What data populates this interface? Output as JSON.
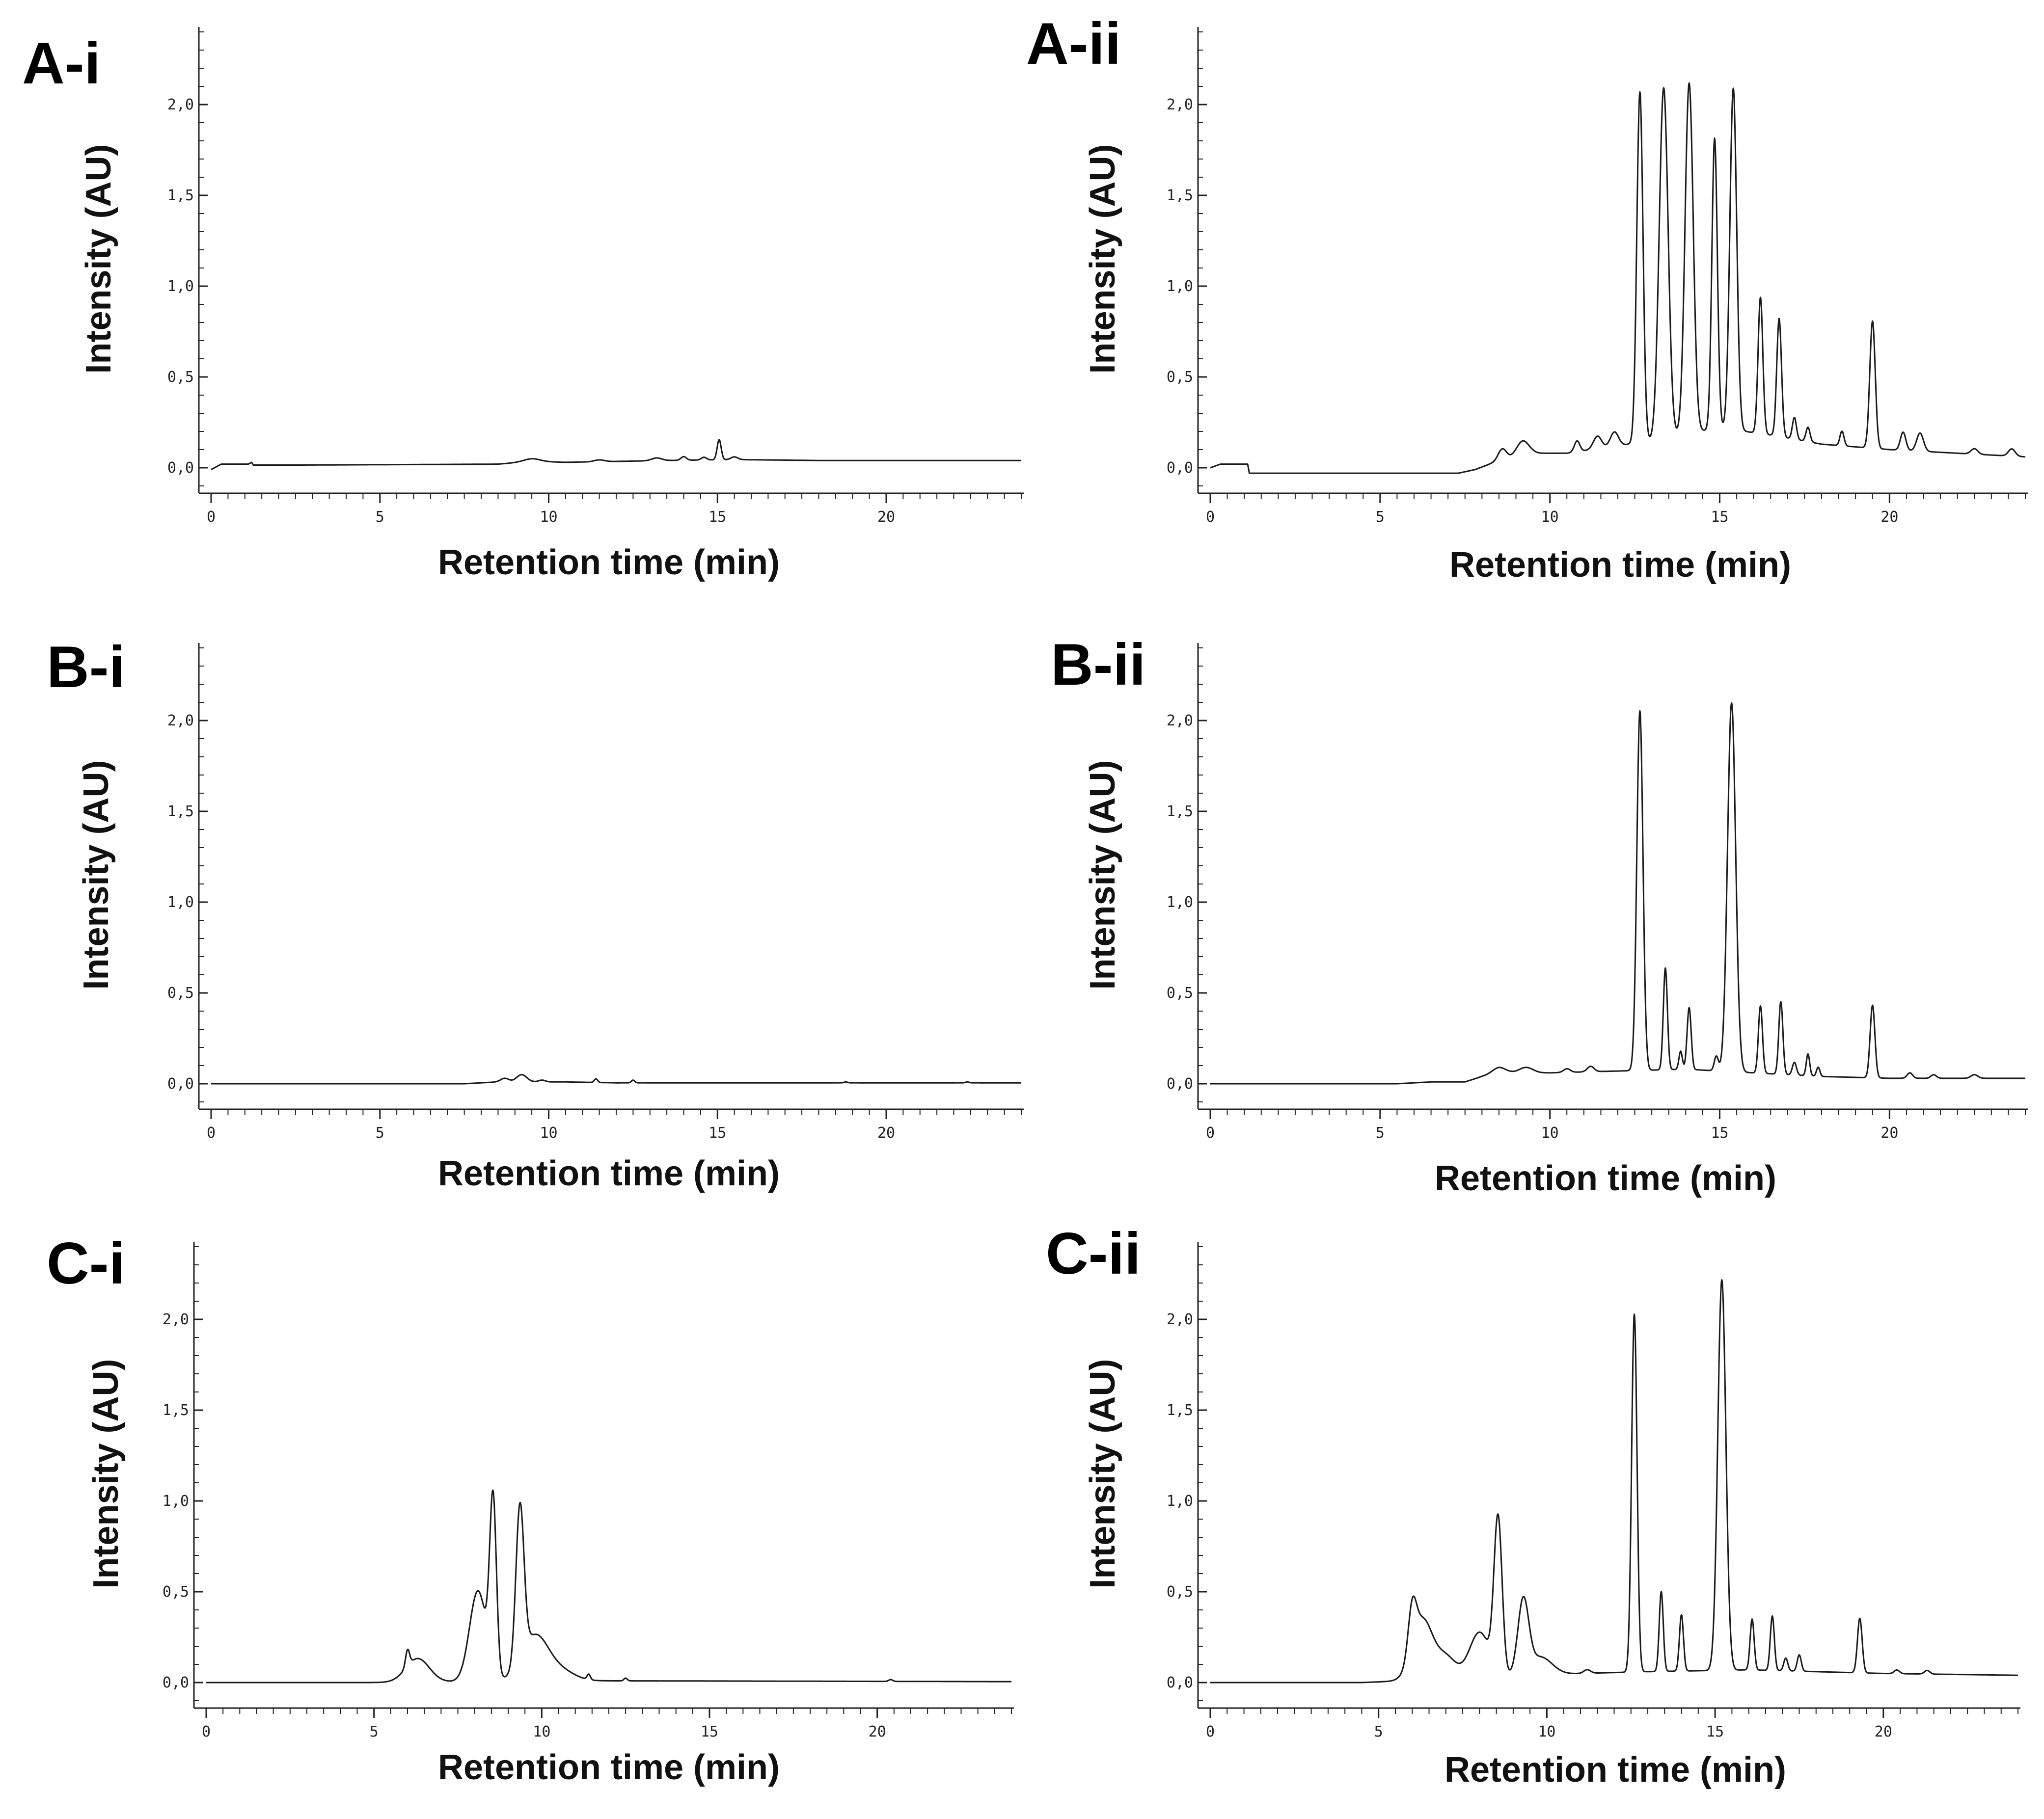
{
  "colors": {
    "trace": "#1a1a1a",
    "axis": "#222222",
    "background": "#ffffff"
  },
  "chart_data": [
    {
      "panel": "A-i",
      "type": "line",
      "xlabel": "Retention time (min)",
      "ylabel": "Intensity (AU)",
      "xlim": [
        0,
        24
      ],
      "ylim": [
        -0.1,
        2.4
      ],
      "xticks": [
        "0",
        "5",
        "10",
        "15",
        "20"
      ],
      "yticks": [
        "0,0",
        "0,5",
        "1,0",
        "1,5",
        "2,0"
      ],
      "baseline": [
        [
          0,
          -0.01
        ],
        [
          0.3,
          0.02
        ],
        [
          1.1,
          0.02
        ],
        [
          1.2,
          0.03
        ],
        [
          1.25,
          0.015
        ],
        [
          2.8,
          0.015
        ],
        [
          8.5,
          0.02
        ],
        [
          9.5,
          0.035
        ],
        [
          10.5,
          0.03
        ],
        [
          12,
          0.035
        ],
        [
          13.5,
          0.04
        ],
        [
          15.5,
          0.045
        ],
        [
          18,
          0.04
        ],
        [
          24,
          0.04
        ]
      ],
      "peaks": [
        [
          9.5,
          0.015,
          0.25
        ],
        [
          11.5,
          0.01,
          0.15
        ],
        [
          13.2,
          0.015,
          0.15
        ],
        [
          14.0,
          0.02,
          0.08
        ],
        [
          14.6,
          0.015,
          0.08
        ],
        [
          15.05,
          0.11,
          0.06
        ],
        [
          15.5,
          0.015,
          0.1
        ]
      ]
    },
    {
      "panel": "A-ii",
      "type": "line",
      "xlabel": "Retention time (min)",
      "ylabel": "Intensity (AU)",
      "xlim": [
        0,
        24
      ],
      "ylim": [
        -0.1,
        2.4
      ],
      "xticks": [
        "0",
        "5",
        "10",
        "15",
        "20"
      ],
      "yticks": [
        "0,0",
        "0,5",
        "1,0",
        "1,5",
        "2,0"
      ],
      "baseline": [
        [
          0,
          0.0
        ],
        [
          0.3,
          0.02
        ],
        [
          1.1,
          0.02
        ],
        [
          1.15,
          -0.03
        ],
        [
          7.3,
          -0.03
        ],
        [
          7.8,
          -0.01
        ],
        [
          8.5,
          0.04
        ],
        [
          9.5,
          0.08
        ],
        [
          10.5,
          0.08
        ],
        [
          12,
          0.12
        ],
        [
          13,
          0.15
        ],
        [
          15,
          0.22
        ],
        [
          16.5,
          0.18
        ],
        [
          18,
          0.13
        ],
        [
          20,
          0.1
        ],
        [
          22,
          0.08
        ],
        [
          24,
          0.06
        ]
      ],
      "peaks": [
        [
          8.6,
          0.06,
          0.12
        ],
        [
          9.2,
          0.08,
          0.18
        ],
        [
          10.8,
          0.06,
          0.08
        ],
        [
          11.4,
          0.07,
          0.12
        ],
        [
          11.9,
          0.08,
          0.12
        ],
        [
          12.65,
          1.93,
          0.09
        ],
        [
          13.35,
          1.93,
          0.13
        ],
        [
          14.1,
          1.93,
          0.12
        ],
        [
          14.85,
          1.6,
          0.08
        ],
        [
          15.4,
          1.88,
          0.1
        ],
        [
          16.2,
          0.75,
          0.07
        ],
        [
          16.75,
          0.65,
          0.07
        ],
        [
          17.2,
          0.12,
          0.06
        ],
        [
          17.6,
          0.08,
          0.06
        ],
        [
          18.6,
          0.08,
          0.06
        ],
        [
          19.5,
          0.7,
          0.08
        ],
        [
          20.4,
          0.1,
          0.08
        ],
        [
          20.9,
          0.1,
          0.1
        ],
        [
          22.5,
          0.03,
          0.1
        ],
        [
          23.6,
          0.04,
          0.1
        ]
      ]
    },
    {
      "panel": "B-i",
      "type": "line",
      "xlabel": "Retention time (min)",
      "ylabel": "Intensity (AU)",
      "xlim": [
        0,
        24
      ],
      "ylim": [
        -0.1,
        2.4
      ],
      "xticks": [
        "0",
        "5",
        "10",
        "15",
        "20"
      ],
      "yticks": [
        "0,0",
        "0,5",
        "1,0",
        "1,5",
        "2,0"
      ],
      "baseline": [
        [
          0,
          0.0
        ],
        [
          7.5,
          0.0
        ],
        [
          8.5,
          0.01
        ],
        [
          10.5,
          0.01
        ],
        [
          12,
          0.005
        ],
        [
          24,
          0.005
        ]
      ],
      "peaks": [
        [
          8.7,
          0.02,
          0.12
        ],
        [
          9.2,
          0.04,
          0.15
        ],
        [
          9.8,
          0.01,
          0.1
        ],
        [
          11.4,
          0.02,
          0.05
        ],
        [
          12.5,
          0.015,
          0.05
        ],
        [
          18.8,
          0.005,
          0.05
        ],
        [
          22.4,
          0.005,
          0.05
        ]
      ]
    },
    {
      "panel": "B-ii",
      "type": "line",
      "xlabel": "Retention time (min)",
      "ylabel": "Intensity (AU)",
      "xlim": [
        0,
        24
      ],
      "ylim": [
        -0.1,
        2.4
      ],
      "xticks": [
        "0",
        "5",
        "10",
        "15",
        "20"
      ],
      "yticks": [
        "0,0",
        "0,5",
        "1,0",
        "1,5",
        "2,0"
      ],
      "baseline": [
        [
          0,
          0.0
        ],
        [
          5.5,
          0.0
        ],
        [
          6.5,
          0.01
        ],
        [
          7.5,
          0.01
        ],
        [
          8,
          0.04
        ],
        [
          8.5,
          0.06
        ],
        [
          10,
          0.06
        ],
        [
          12,
          0.07
        ],
        [
          14,
          0.08
        ],
        [
          16,
          0.06
        ],
        [
          18,
          0.04
        ],
        [
          20,
          0.03
        ],
        [
          24,
          0.03
        ]
      ],
      "peaks": [
        [
          8.5,
          0.03,
          0.2
        ],
        [
          9.3,
          0.03,
          0.2
        ],
        [
          10.5,
          0.02,
          0.1
        ],
        [
          11.2,
          0.03,
          0.1
        ],
        [
          12.65,
          1.98,
          0.09
        ],
        [
          13.4,
          0.56,
          0.06
        ],
        [
          13.85,
          0.1,
          0.05
        ],
        [
          14.1,
          0.34,
          0.06
        ],
        [
          14.9,
          0.08,
          0.06
        ],
        [
          15.35,
          2.03,
          0.12
        ],
        [
          16.2,
          0.37,
          0.06
        ],
        [
          16.8,
          0.4,
          0.06
        ],
        [
          17.2,
          0.07,
          0.06
        ],
        [
          17.6,
          0.12,
          0.05
        ],
        [
          17.9,
          0.05,
          0.05
        ],
        [
          19.5,
          0.4,
          0.07
        ],
        [
          20.6,
          0.03,
          0.08
        ],
        [
          21.3,
          0.02,
          0.08
        ],
        [
          22.5,
          0.02,
          0.1
        ]
      ]
    },
    {
      "panel": "C-i",
      "type": "line",
      "xlabel": "Retention time (min)",
      "ylabel": "Intensity (AU)",
      "xlim": [
        0,
        24
      ],
      "ylim": [
        -0.1,
        2.4
      ],
      "xticks": [
        "0",
        "5",
        "10",
        "15",
        "20"
      ],
      "yticks": [
        "0,0",
        "0,5",
        "1,0",
        "1,5",
        "2,0"
      ],
      "baseline": [
        [
          0,
          0.0
        ],
        [
          4.8,
          0.0
        ],
        [
          11,
          0.01
        ],
        [
          24,
          0.005
        ]
      ],
      "peaks": [
        [
          6.0,
          0.09,
          0.06
        ],
        [
          6.3,
          0.13,
          0.35
        ],
        [
          8.1,
          0.5,
          0.25
        ],
        [
          8.55,
          0.95,
          0.1
        ],
        [
          9.35,
          0.85,
          0.12
        ],
        [
          9.8,
          0.25,
          0.4
        ],
        [
          10.6,
          0.05,
          0.4
        ],
        [
          11.4,
          0.03,
          0.05
        ],
        [
          12.5,
          0.015,
          0.05
        ],
        [
          20.4,
          0.01,
          0.06
        ]
      ]
    },
    {
      "panel": "C-ii",
      "type": "line",
      "xlabel": "Retention time (min)",
      "ylabel": "Intensity (AU)",
      "xlim": [
        0,
        24
      ],
      "ylim": [
        -0.1,
        2.4
      ],
      "xticks": [
        "0",
        "5",
        "10",
        "15",
        "20"
      ],
      "yticks": [
        "0,0",
        "0,5",
        "1,0",
        "1,5",
        "2,0"
      ],
      "baseline": [
        [
          0,
          0.0
        ],
        [
          4.5,
          0.0
        ],
        [
          11,
          0.05
        ],
        [
          13,
          0.06
        ],
        [
          16,
          0.07
        ],
        [
          18,
          0.06
        ],
        [
          20,
          0.05
        ],
        [
          24,
          0.04
        ]
      ],
      "peaks": [
        [
          6.0,
          0.25,
          0.12
        ],
        [
          6.3,
          0.33,
          0.3
        ],
        [
          7.0,
          0.12,
          0.3
        ],
        [
          8.0,
          0.25,
          0.3
        ],
        [
          8.55,
          0.85,
          0.12
        ],
        [
          9.3,
          0.4,
          0.16
        ],
        [
          9.8,
          0.1,
          0.35
        ],
        [
          11.2,
          0.02,
          0.1
        ],
        [
          12.6,
          1.97,
          0.08
        ],
        [
          13.4,
          0.44,
          0.06
        ],
        [
          14.0,
          0.31,
          0.06
        ],
        [
          15.2,
          2.15,
          0.12
        ],
        [
          16.1,
          0.28,
          0.06
        ],
        [
          16.7,
          0.3,
          0.06
        ],
        [
          17.1,
          0.07,
          0.06
        ],
        [
          17.5,
          0.09,
          0.06
        ],
        [
          19.3,
          0.3,
          0.07
        ],
        [
          20.4,
          0.02,
          0.08
        ],
        [
          21.3,
          0.02,
          0.08
        ]
      ]
    }
  ]
}
